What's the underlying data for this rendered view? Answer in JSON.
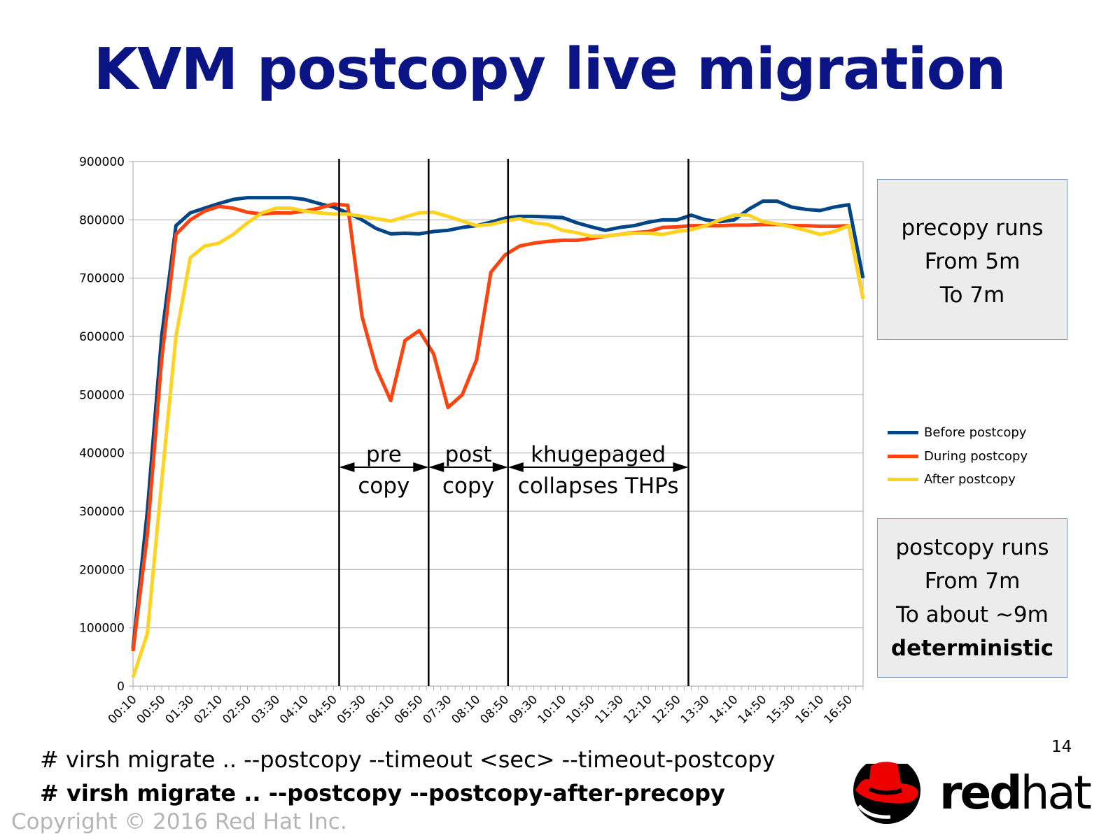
{
  "title": "KVM postcopy live migration",
  "chart_data": {
    "type": "line",
    "title": "",
    "xlabel": "",
    "ylabel": "",
    "ylim": [
      0,
      900000
    ],
    "yticks": [
      "0",
      "100000",
      "200000",
      "300000",
      "400000",
      "500000",
      "600000",
      "700000",
      "800000",
      "900000"
    ],
    "xtick_labels": [
      "00:10",
      "00:50",
      "01:30",
      "02:10",
      "02:50",
      "03:30",
      "04:10",
      "04:50",
      "05:30",
      "06:10",
      "06:50",
      "07:30",
      "08:10",
      "08:50",
      "09:30",
      "10:10",
      "10:50",
      "11:30",
      "12:10",
      "12:50",
      "13:30",
      "14:10",
      "14:50",
      "15:30",
      "16:10",
      "16:50"
    ],
    "grid": true,
    "legend_position": "right",
    "x": [
      "00:10",
      "00:30",
      "00:50",
      "01:10",
      "01:30",
      "01:50",
      "02:10",
      "02:30",
      "02:50",
      "03:10",
      "03:30",
      "03:50",
      "04:10",
      "04:30",
      "04:50",
      "05:10",
      "05:30",
      "05:50",
      "06:10",
      "06:30",
      "06:50",
      "07:10",
      "07:30",
      "07:50",
      "08:10",
      "08:30",
      "08:50",
      "09:10",
      "09:30",
      "09:50",
      "10:10",
      "10:30",
      "10:50",
      "11:10",
      "11:30",
      "11:50",
      "12:10",
      "12:30",
      "12:50",
      "13:10",
      "13:30",
      "13:50",
      "14:10",
      "14:30",
      "14:50",
      "15:10",
      "15:30",
      "15:50",
      "16:10",
      "16:30",
      "16:50",
      "17:10"
    ],
    "series": [
      {
        "name": "Before postcopy",
        "color": "#004586",
        "values": [
          65000,
          300000,
          600000,
          790000,
          812000,
          820000,
          828000,
          835000,
          838000,
          838000,
          838000,
          838000,
          835000,
          828000,
          822000,
          812000,
          800000,
          785000,
          776000,
          777000,
          776000,
          780000,
          782000,
          787000,
          790000,
          796000,
          803000,
          806000,
          806000,
          805000,
          804000,
          795000,
          788000,
          782000,
          787000,
          790000,
          796000,
          800000,
          800000,
          808000,
          800000,
          797000,
          800000,
          818000,
          832000,
          832000,
          822000,
          818000,
          816000,
          822000,
          826000,
          700000
        ]
      },
      {
        "name": "During postcopy",
        "color": "#ff420e",
        "values": [
          60000,
          260000,
          560000,
          775000,
          800000,
          815000,
          823000,
          820000,
          813000,
          810000,
          812000,
          812000,
          815000,
          820000,
          827000,
          825000,
          634000,
          545000,
          490000,
          593000,
          610000,
          570000,
          478000,
          500000,
          560000,
          710000,
          740000,
          755000,
          760000,
          763000,
          765000,
          765000,
          768000,
          772000,
          775000,
          778000,
          780000,
          787000,
          788000,
          790000,
          790000,
          790000,
          791000,
          791000,
          792000,
          792000,
          790000,
          790000,
          789000,
          789000,
          790000,
          665000
        ]
      },
      {
        "name": "After postcopy",
        "color": "#ffd320",
        "values": [
          15000,
          90000,
          350000,
          600000,
          735000,
          755000,
          760000,
          775000,
          795000,
          812000,
          820000,
          820000,
          815000,
          812000,
          810000,
          810000,
          806000,
          802000,
          798000,
          805000,
          812000,
          813000,
          806000,
          798000,
          790000,
          792000,
          798000,
          802000,
          795000,
          792000,
          782000,
          778000,
          772000,
          772000,
          775000,
          777000,
          777000,
          775000,
          780000,
          783000,
          790000,
          800000,
          808000,
          808000,
          797000,
          793000,
          788000,
          782000,
          775000,
          780000,
          790000,
          665000
        ]
      }
    ],
    "markers": [
      "04:58",
      "07:03",
      "08:54",
      "13:06"
    ],
    "annotations": [
      {
        "line1": "pre",
        "line2": "copy",
        "from": "04:58",
        "to": "07:03"
      },
      {
        "line1": "post",
        "line2": "copy",
        "from": "07:03",
        "to": "08:54"
      },
      {
        "line1": "khugepaged",
        "line2": "collapses THPs",
        "from": "08:54",
        "to": "13:06"
      }
    ]
  },
  "boxes": {
    "precopy": {
      "line1": "precopy runs",
      "line2": "From 5m",
      "line3": "To 7m"
    },
    "postcopy": {
      "line1": "postcopy runs",
      "line2": "From 7m",
      "line3": "To about ~9m",
      "line4": "deterministic"
    }
  },
  "commands": {
    "line1": "# virsh migrate .. --postcopy --timeout <sec> --timeout-postcopy",
    "line2": "# virsh migrate .. --postcopy --postcopy-after-precopy"
  },
  "footer": {
    "copyright": "Copyright © 2016 Red Hat Inc.",
    "page_number": "14",
    "logo_text": "redhat"
  }
}
